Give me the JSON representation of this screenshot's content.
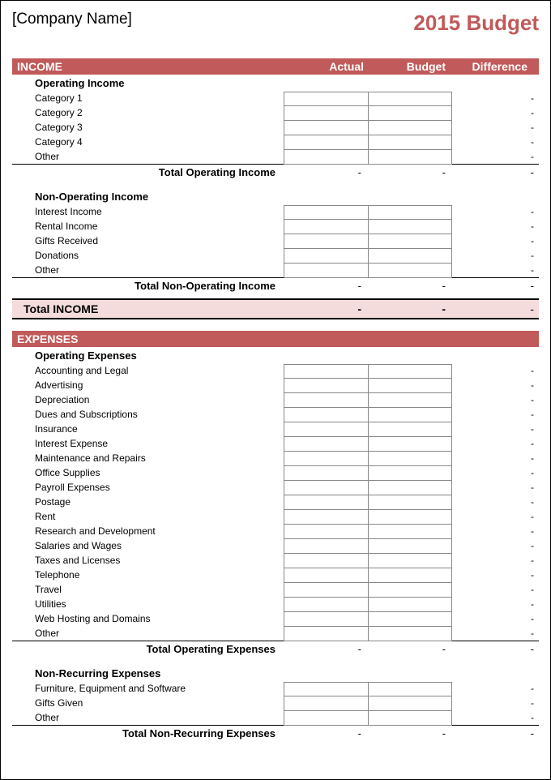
{
  "header": {
    "company": "[Company Name]",
    "title": "2015 Budget"
  },
  "colors": {
    "accent": "#c15a5a",
    "accent_light": "#f5dcdc",
    "border": "#888888",
    "text": "#000000",
    "background": "#ffffff"
  },
  "columns": {
    "actual": "Actual",
    "budget": "Budget",
    "difference": "Difference"
  },
  "income": {
    "section_title": "INCOME",
    "operating": {
      "title": "Operating Income",
      "items": [
        {
          "label": "Category 1",
          "actual": "",
          "budget": "",
          "diff": "-"
        },
        {
          "label": "Category 2",
          "actual": "",
          "budget": "",
          "diff": "-"
        },
        {
          "label": "Category 3",
          "actual": "",
          "budget": "",
          "diff": "-"
        },
        {
          "label": "Category 4",
          "actual": "",
          "budget": "",
          "diff": "-"
        },
        {
          "label": "Other",
          "actual": "",
          "budget": "",
          "diff": "-"
        }
      ],
      "total_label": "Total Operating Income",
      "total": {
        "actual": "-",
        "budget": "-",
        "diff": "-"
      }
    },
    "non_operating": {
      "title": "Non-Operating Income",
      "items": [
        {
          "label": "Interest Income",
          "actual": "",
          "budget": "",
          "diff": "-"
        },
        {
          "label": "Rental Income",
          "actual": "",
          "budget": "",
          "diff": "-"
        },
        {
          "label": "Gifts Received",
          "actual": "",
          "budget": "",
          "diff": "-"
        },
        {
          "label": "Donations",
          "actual": "",
          "budget": "",
          "diff": "-"
        },
        {
          "label": "Other",
          "actual": "",
          "budget": "",
          "diff": "-"
        }
      ],
      "total_label": "Total Non-Operating Income",
      "total": {
        "actual": "-",
        "budget": "-",
        "diff": "-"
      }
    },
    "grand_total_label": "Total INCOME",
    "grand_total": {
      "actual": "-",
      "budget": "-",
      "diff": "-"
    }
  },
  "expenses": {
    "section_title": "EXPENSES",
    "operating": {
      "title": "Operating Expenses",
      "items": [
        {
          "label": "Accounting and Legal",
          "actual": "",
          "budget": "",
          "diff": "-"
        },
        {
          "label": "Advertising",
          "actual": "",
          "budget": "",
          "diff": "-"
        },
        {
          "label": "Depreciation",
          "actual": "",
          "budget": "",
          "diff": "-"
        },
        {
          "label": "Dues and Subscriptions",
          "actual": "",
          "budget": "",
          "diff": "-"
        },
        {
          "label": "Insurance",
          "actual": "",
          "budget": "",
          "diff": "-"
        },
        {
          "label": "Interest Expense",
          "actual": "",
          "budget": "",
          "diff": "-"
        },
        {
          "label": "Maintenance and Repairs",
          "actual": "",
          "budget": "",
          "diff": "-"
        },
        {
          "label": "Office Supplies",
          "actual": "",
          "budget": "",
          "diff": "-"
        },
        {
          "label": "Payroll Expenses",
          "actual": "",
          "budget": "",
          "diff": "-"
        },
        {
          "label": "Postage",
          "actual": "",
          "budget": "",
          "diff": "-"
        },
        {
          "label": "Rent",
          "actual": "",
          "budget": "",
          "diff": "-"
        },
        {
          "label": "Research and Development",
          "actual": "",
          "budget": "",
          "diff": "-"
        },
        {
          "label": "Salaries and Wages",
          "actual": "",
          "budget": "",
          "diff": "-"
        },
        {
          "label": "Taxes and Licenses",
          "actual": "",
          "budget": "",
          "diff": "-"
        },
        {
          "label": "Telephone",
          "actual": "",
          "budget": "",
          "diff": "-"
        },
        {
          "label": "Travel",
          "actual": "",
          "budget": "",
          "diff": "-"
        },
        {
          "label": "Utilities",
          "actual": "",
          "budget": "",
          "diff": "-"
        },
        {
          "label": "Web Hosting and Domains",
          "actual": "",
          "budget": "",
          "diff": "-"
        },
        {
          "label": "Other",
          "actual": "",
          "budget": "",
          "diff": "-"
        }
      ],
      "total_label": "Total Operating Expenses",
      "total": {
        "actual": "-",
        "budget": "-",
        "diff": "-"
      }
    },
    "non_recurring": {
      "title": "Non-Recurring Expenses",
      "items": [
        {
          "label": "Furniture, Equipment and Software",
          "actual": "",
          "budget": "",
          "diff": "-"
        },
        {
          "label": "Gifts Given",
          "actual": "",
          "budget": "",
          "diff": "-"
        },
        {
          "label": "Other",
          "actual": "",
          "budget": "",
          "diff": "-"
        }
      ],
      "total_label": "Total Non-Recurring Expenses",
      "total": {
        "actual": "-",
        "budget": "-",
        "diff": "-"
      }
    }
  }
}
